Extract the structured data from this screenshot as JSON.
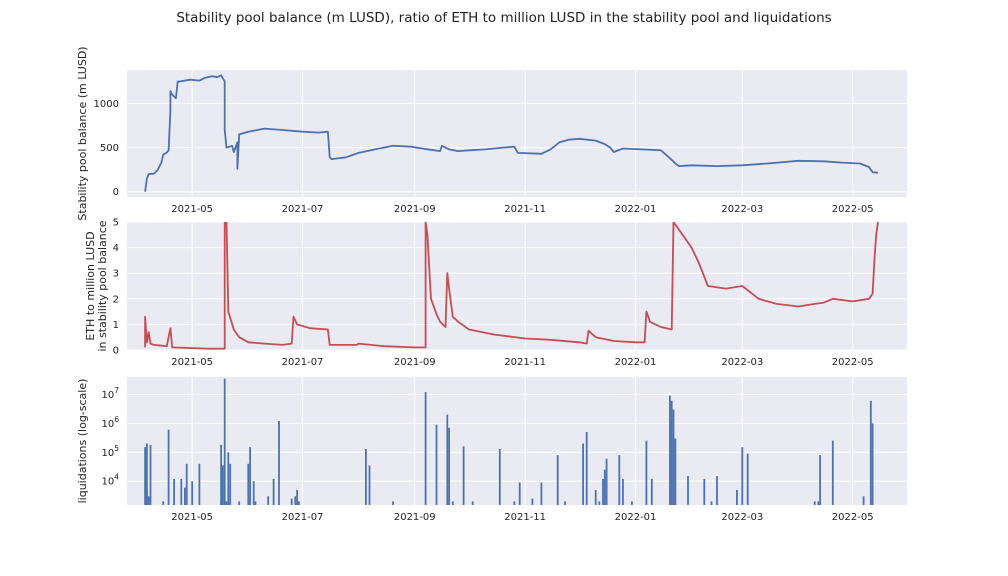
{
  "title": "Stability pool balance (m LUSD), ratio of ETH to million LUSD in the stability pool and liquidations",
  "colors": {
    "panel_bg": "#eaeaf2",
    "grid": "#ffffff",
    "blue": "#4c72b0",
    "red": "#c44e52"
  },
  "chart_data": [
    {
      "type": "line",
      "ylabel": "Stability pool balance (m LUSD)",
      "x_ticks": [
        "2021-05",
        "2021-07",
        "2021-09",
        "2021-11",
        "2022-01",
        "2022-03",
        "2022-05"
      ],
      "y_ticks": [
        "0",
        "500",
        "1000"
      ],
      "xlim": [
        "2021-03-26",
        "2022-05-31"
      ],
      "ylim": [
        -60,
        1380
      ],
      "grid": true,
      "series": [
        {
          "color": "#4c72b0",
          "points": [
            [
              "2021-04-05",
              0
            ],
            [
              "2021-04-06",
              150
            ],
            [
              "2021-04-07",
              200
            ],
            [
              "2021-04-10",
              205
            ],
            [
              "2021-04-12",
              250
            ],
            [
              "2021-04-14",
              330
            ],
            [
              "2021-04-15",
              420
            ],
            [
              "2021-04-17",
              445
            ],
            [
              "2021-04-18",
              470
            ],
            [
              "2021-04-19",
              920
            ],
            [
              "2021-04-19",
              1140
            ],
            [
              "2021-04-20",
              1100
            ],
            [
              "2021-04-21",
              1080
            ],
            [
              "2021-04-22",
              1060
            ],
            [
              "2021-04-23",
              1250
            ],
            [
              "2021-04-24",
              1250
            ],
            [
              "2021-04-30",
              1270
            ],
            [
              "2021-05-05",
              1260
            ],
            [
              "2021-05-08",
              1290
            ],
            [
              "2021-05-12",
              1310
            ],
            [
              "2021-05-15",
              1300
            ],
            [
              "2021-05-17",
              1320
            ],
            [
              "2021-05-19",
              1250
            ],
            [
              "2021-05-19",
              700
            ],
            [
              "2021-05-20",
              500
            ],
            [
              "2021-05-23",
              520
            ],
            [
              "2021-05-24",
              450
            ],
            [
              "2021-05-26",
              560
            ],
            [
              "2021-05-26",
              260
            ],
            [
              "2021-05-27",
              650
            ],
            [
              "2021-06-01",
              680
            ],
            [
              "2021-06-10",
              715
            ],
            [
              "2021-06-20",
              700
            ],
            [
              "2021-07-01",
              680
            ],
            [
              "2021-07-10",
              670
            ],
            [
              "2021-07-15",
              680
            ],
            [
              "2021-07-16",
              390
            ],
            [
              "2021-07-17",
              370
            ],
            [
              "2021-07-25",
              390
            ],
            [
              "2021-08-01",
              440
            ],
            [
              "2021-08-10",
              480
            ],
            [
              "2021-08-20",
              520
            ],
            [
              "2021-08-30",
              510
            ],
            [
              "2021-09-05",
              490
            ],
            [
              "2021-09-10",
              475
            ],
            [
              "2021-09-15",
              460
            ],
            [
              "2021-09-16",
              520
            ],
            [
              "2021-09-20",
              480
            ],
            [
              "2021-09-25",
              460
            ],
            [
              "2021-10-01",
              470
            ],
            [
              "2021-10-10",
              480
            ],
            [
              "2021-10-20",
              500
            ],
            [
              "2021-10-26",
              510
            ],
            [
              "2021-10-28",
              440
            ],
            [
              "2021-11-10",
              430
            ],
            [
              "2021-11-15",
              480
            ],
            [
              "2021-11-20",
              560
            ],
            [
              "2021-11-25",
              590
            ],
            [
              "2021-12-01",
              600
            ],
            [
              "2021-12-10",
              580
            ],
            [
              "2021-12-15",
              540
            ],
            [
              "2021-12-18",
              500
            ],
            [
              "2021-12-20",
              450
            ],
            [
              "2021-12-25",
              490
            ],
            [
              "2022-01-05",
              480
            ],
            [
              "2022-01-15",
              470
            ],
            [
              "2022-01-20",
              380
            ],
            [
              "2022-01-23",
              320
            ],
            [
              "2022-01-25",
              290
            ],
            [
              "2022-02-01",
              300
            ],
            [
              "2022-02-15",
              290
            ],
            [
              "2022-03-01",
              300
            ],
            [
              "2022-03-15",
              320
            ],
            [
              "2022-04-01",
              350
            ],
            [
              "2022-04-15",
              345
            ],
            [
              "2022-04-25",
              330
            ],
            [
              "2022-05-05",
              320
            ],
            [
              "2022-05-10",
              280
            ],
            [
              "2022-05-12",
              220
            ],
            [
              "2022-05-15",
              215
            ]
          ]
        }
      ]
    },
    {
      "type": "line",
      "ylabel": [
        "ETH to million LUSD",
        "in stability pool balance"
      ],
      "x_ticks": [
        "2021-05",
        "2021-07",
        "2021-09",
        "2021-11",
        "2022-01",
        "2022-03",
        "2022-05"
      ],
      "y_ticks": [
        "0",
        "1",
        "2",
        "3",
        "4",
        "5"
      ],
      "xlim": [
        "2021-03-26",
        "2022-05-31"
      ],
      "ylim": [
        0,
        5
      ],
      "grid": true,
      "series": [
        {
          "color": "#c44e52",
          "points": [
            [
              "2021-04-05",
              0.1
            ],
            [
              "2021-04-05",
              1.3
            ],
            [
              "2021-04-06",
              0.3
            ],
            [
              "2021-04-07",
              0.7
            ],
            [
              "2021-04-08",
              0.25
            ],
            [
              "2021-04-10",
              0.2
            ],
            [
              "2021-04-17",
              0.15
            ],
            [
              "2021-04-19",
              0.85
            ],
            [
              "2021-04-20",
              0.1
            ],
            [
              "2021-05-10",
              0.05
            ],
            [
              "2021-05-19",
              0.05
            ],
            [
              "2021-05-19",
              5.0
            ],
            [
              "2021-05-20",
              5.0
            ],
            [
              "2021-05-21",
              1.5
            ],
            [
              "2021-05-24",
              0.8
            ],
            [
              "2021-05-27",
              0.5
            ],
            [
              "2021-06-01",
              0.3
            ],
            [
              "2021-06-10",
              0.25
            ],
            [
              "2021-06-20",
              0.2
            ],
            [
              "2021-06-25",
              0.25
            ],
            [
              "2021-06-26",
              1.3
            ],
            [
              "2021-06-28",
              1.0
            ],
            [
              "2021-07-05",
              0.85
            ],
            [
              "2021-07-15",
              0.8
            ],
            [
              "2021-07-16",
              0.2
            ],
            [
              "2021-07-31",
              0.2
            ],
            [
              "2021-08-01",
              0.25
            ],
            [
              "2021-08-15",
              0.15
            ],
            [
              "2021-09-01",
              0.1
            ],
            [
              "2021-09-07",
              0.1
            ],
            [
              "2021-09-07",
              5.0
            ],
            [
              "2021-09-08",
              4.5
            ],
            [
              "2021-09-10",
              2.0
            ],
            [
              "2021-09-13",
              1.4
            ],
            [
              "2021-09-15",
              1.1
            ],
            [
              "2021-09-18",
              0.9
            ],
            [
              "2021-09-19",
              3.0
            ],
            [
              "2021-09-20",
              2.4
            ],
            [
              "2021-09-22",
              1.3
            ],
            [
              "2021-09-25",
              1.1
            ],
            [
              "2021-10-01",
              0.8
            ],
            [
              "2021-10-15",
              0.6
            ],
            [
              "2021-11-01",
              0.45
            ],
            [
              "2021-11-15",
              0.4
            ],
            [
              "2021-12-01",
              0.3
            ],
            [
              "2021-12-05",
              0.25
            ],
            [
              "2021-12-06",
              0.75
            ],
            [
              "2021-12-10",
              0.5
            ],
            [
              "2021-12-20",
              0.35
            ],
            [
              "2022-01-01",
              0.3
            ],
            [
              "2022-01-06",
              0.3
            ],
            [
              "2022-01-07",
              1.5
            ],
            [
              "2022-01-09",
              1.1
            ],
            [
              "2022-01-15",
              0.9
            ],
            [
              "2022-01-21",
              0.8
            ],
            [
              "2022-01-22",
              5.0
            ],
            [
              "2022-01-25",
              4.7
            ],
            [
              "2022-02-01",
              4.0
            ],
            [
              "2022-02-05",
              3.4
            ],
            [
              "2022-02-10",
              2.5
            ],
            [
              "2022-02-20",
              2.4
            ],
            [
              "2022-03-01",
              2.5
            ],
            [
              "2022-03-10",
              2.0
            ],
            [
              "2022-03-20",
              1.8
            ],
            [
              "2022-04-01",
              1.7
            ],
            [
              "2022-04-10",
              1.8
            ],
            [
              "2022-04-15",
              1.85
            ],
            [
              "2022-04-20",
              2.0
            ],
            [
              "2022-05-01",
              1.9
            ],
            [
              "2022-05-10",
              2.0
            ],
            [
              "2022-05-12",
              2.2
            ],
            [
              "2022-05-13",
              3.5
            ],
            [
              "2022-05-14",
              4.5
            ],
            [
              "2022-05-15",
              5.0
            ]
          ]
        }
      ]
    },
    {
      "type": "bar",
      "ylabel": "liquidations (log-scale)",
      "x_ticks": [
        "2021-05",
        "2021-07",
        "2021-09",
        "2021-11",
        "2022-01",
        "2022-03",
        "2022-05"
      ],
      "y_ticks": [
        "10^4",
        "10^5",
        "10^6",
        "10^7"
      ],
      "y_scale": "log",
      "xlim": [
        "2021-03-26",
        "2022-05-31"
      ],
      "ylim": [
        1500,
        40000000
      ],
      "grid": true,
      "color": "#4c72b0",
      "bars": [
        [
          "2021-04-05",
          150000
        ],
        [
          "2021-04-06",
          200000
        ],
        [
          "2021-04-06",
          5000
        ],
        [
          "2021-04-07",
          3000
        ],
        [
          "2021-04-08",
          180000
        ],
        [
          "2021-04-15",
          2000
        ],
        [
          "2021-04-18",
          600000
        ],
        [
          "2021-04-21",
          12000
        ],
        [
          "2021-04-25",
          12000
        ],
        [
          "2021-04-27",
          6000
        ],
        [
          "2021-04-28",
          40000
        ],
        [
          "2021-05-01",
          10000
        ],
        [
          "2021-05-05",
          40000
        ],
        [
          "2021-05-17",
          180000
        ],
        [
          "2021-05-17",
          2000
        ],
        [
          "2021-05-18",
          35000
        ],
        [
          "2021-05-19",
          35000000
        ],
        [
          "2021-05-20",
          2000
        ],
        [
          "2021-05-21",
          100000
        ],
        [
          "2021-05-22",
          40000
        ],
        [
          "2021-05-27",
          2000
        ],
        [
          "2021-06-01",
          40000
        ],
        [
          "2021-06-02",
          150000
        ],
        [
          "2021-06-04",
          10000
        ],
        [
          "2021-06-05",
          2000
        ],
        [
          "2021-06-12",
          3000
        ],
        [
          "2021-06-15",
          12000
        ],
        [
          "2021-06-18",
          1200000
        ],
        [
          "2021-06-25",
          2500
        ],
        [
          "2021-06-27",
          3000
        ],
        [
          "2021-06-28",
          5000
        ],
        [
          "2021-06-29",
          2000
        ],
        [
          "2021-08-05",
          130000
        ],
        [
          "2021-08-07",
          35000
        ],
        [
          "2021-08-20",
          2000
        ],
        [
          "2021-09-07",
          12000000
        ],
        [
          "2021-09-13",
          900000
        ],
        [
          "2021-09-19",
          2000000
        ],
        [
          "2021-09-20",
          700000
        ],
        [
          "2021-09-22",
          2000
        ],
        [
          "2021-09-28",
          160000
        ],
        [
          "2021-10-03",
          2000
        ],
        [
          "2021-10-18",
          130000
        ],
        [
          "2021-10-26",
          2000
        ],
        [
          "2021-10-29",
          9000
        ],
        [
          "2021-11-05",
          2500
        ],
        [
          "2021-11-10",
          9000
        ],
        [
          "2021-11-19",
          80000
        ],
        [
          "2021-11-23",
          2000
        ],
        [
          "2021-12-03",
          200000
        ],
        [
          "2021-12-05",
          500000
        ],
        [
          "2021-12-10",
          5000
        ],
        [
          "2021-12-12",
          2000
        ],
        [
          "2021-12-14",
          12000
        ],
        [
          "2021-12-15",
          25000
        ],
        [
          "2021-12-16",
          60000
        ],
        [
          "2021-12-23",
          80000
        ],
        [
          "2021-12-25",
          12000
        ],
        [
          "2021-12-30",
          2000
        ],
        [
          "2022-01-07",
          250000
        ],
        [
          "2022-01-10",
          12000
        ],
        [
          "2022-01-20",
          9000000
        ],
        [
          "2022-01-21",
          6000000
        ],
        [
          "2022-01-22",
          3000000
        ],
        [
          "2022-01-23",
          300000
        ],
        [
          "2022-01-30",
          15000
        ],
        [
          "2022-02-08",
          12000
        ],
        [
          "2022-02-12",
          2000
        ],
        [
          "2022-02-15",
          15000
        ],
        [
          "2022-02-26",
          5000
        ],
        [
          "2022-03-01",
          150000
        ],
        [
          "2022-03-04",
          90000
        ],
        [
          "2022-04-10",
          2000
        ],
        [
          "2022-04-12",
          2000
        ],
        [
          "2022-04-13",
          80000
        ],
        [
          "2022-04-20",
          250000
        ],
        [
          "2022-05-07",
          3000
        ],
        [
          "2022-05-11",
          6000000
        ],
        [
          "2022-05-12",
          1000000
        ]
      ]
    }
  ]
}
